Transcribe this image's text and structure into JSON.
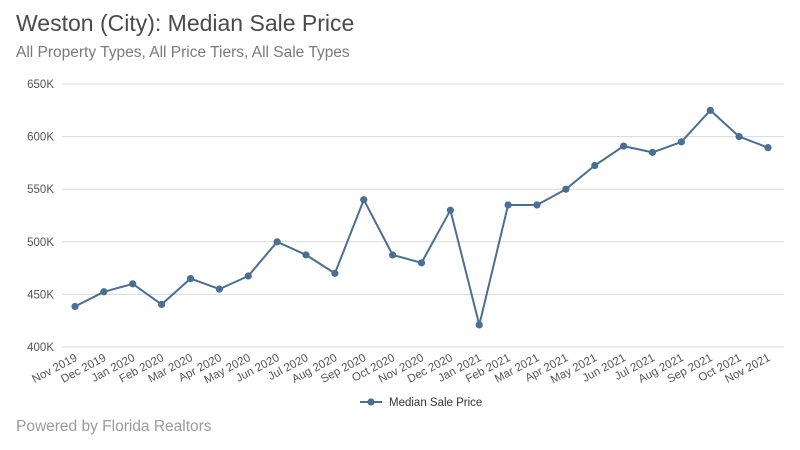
{
  "header": {
    "title": "Weston (City): Median Sale Price",
    "subtitle": "All Property Types, All Price Tiers, All Sale Types"
  },
  "footer": {
    "text": "Powered by Florida Realtors"
  },
  "chart_data": {
    "type": "line",
    "title": "Weston (City): Median Sale Price",
    "subtitle": "All Property Types, All Price Tiers, All Sale Types",
    "xlabel": "",
    "ylabel": "",
    "categories": [
      "Nov 2019",
      "Dec 2019",
      "Jan 2020",
      "Feb 2020",
      "Mar 2020",
      "Apr 2020",
      "May 2020",
      "Jun 2020",
      "Jul 2020",
      "Aug 2020",
      "Sep 2020",
      "Oct 2020",
      "Nov 2020",
      "Dec 2020",
      "Jan 2021",
      "Feb 2021",
      "Mar 2021",
      "Apr 2021",
      "May 2021",
      "Jun 2021",
      "Jul 2021",
      "Aug 2021",
      "Sep 2021",
      "Oct 2021",
      "Nov 2021"
    ],
    "series": [
      {
        "name": "Median Sale Price",
        "color": "#4a6f94",
        "values": [
          438500,
          452500,
          460000,
          440500,
          465000,
          455000,
          467500,
          500000,
          487500,
          470000,
          540000,
          487500,
          480000,
          530000,
          421000,
          535000,
          535000,
          550000,
          572500,
          591000,
          585000,
          595000,
          625000,
          600000,
          589500
        ]
      }
    ],
    "ylim": [
      400000,
      650000
    ],
    "yticks": [
      400000,
      450000,
      500000,
      550000,
      600000,
      650000
    ],
    "ytick_labels": [
      "400K",
      "450K",
      "500K",
      "550K",
      "600K",
      "650K"
    ],
    "grid": true,
    "legend_position": "bottom"
  }
}
